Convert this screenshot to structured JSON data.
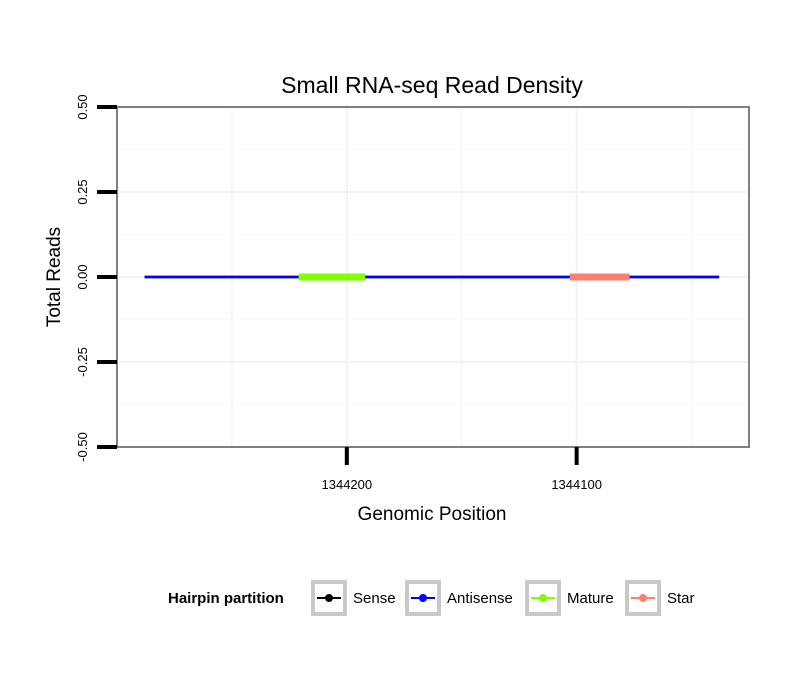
{
  "chart_data": {
    "type": "line",
    "title": "Small RNA-seq Read Density",
    "xlabel": "Genomic Position",
    "ylabel": "Total Reads",
    "x_reversed": true,
    "xlim": [
      1344300,
      1344025
    ],
    "ylim": [
      -0.5,
      0.5
    ],
    "x_ticks": [
      1344200,
      1344100
    ],
    "x_tick_labels": [
      "1344200",
      "1344100"
    ],
    "y_ticks": [
      -0.5,
      -0.25,
      0,
      0.25,
      0.5
    ],
    "y_tick_labels": [
      "-0.50",
      "-0.25",
      "0.00",
      "0.25",
      "0.50"
    ],
    "grid": true,
    "legend_position": "bottom",
    "series": [
      {
        "name": "Sense",
        "color": "#000000",
        "x": [
          1344288,
          1344038
        ],
        "y": [
          0,
          0
        ]
      },
      {
        "name": "Antisense",
        "color": "#0000ff",
        "x": [
          1344288,
          1344038
        ],
        "y": [
          0,
          0
        ]
      },
      {
        "name": "Mature",
        "color": "#7fff00",
        "x": [
          1344221,
          1344192
        ],
        "y": [
          0,
          0
        ]
      },
      {
        "name": "Star",
        "color": "#fa8072",
        "x": [
          1344103,
          1344077
        ],
        "y": [
          0,
          0
        ]
      }
    ]
  },
  "legend": {
    "title": "Hairpin partition",
    "items": [
      {
        "label": "Sense",
        "color": "#000000"
      },
      {
        "label": "Antisense",
        "color": "#0000ff"
      },
      {
        "label": "Mature",
        "color": "#7fff00"
      },
      {
        "label": "Star",
        "color": "#fa8072"
      }
    ]
  }
}
